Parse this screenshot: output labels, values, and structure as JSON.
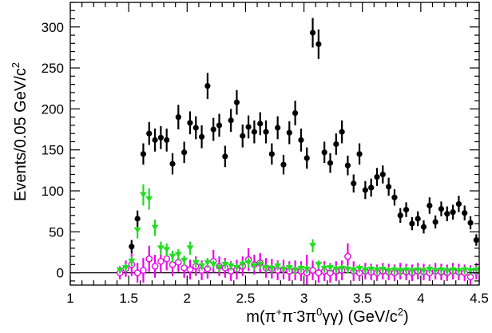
{
  "chart_data": {
    "type": "scatter",
    "title": "",
    "xlabel_parts": {
      "pre": "m(π",
      "sup1": "+",
      "mid1": "π",
      "sup2": "-",
      "mid2": "3π",
      "sup3": "0",
      "mid3": "γγ) (GeV/c",
      "sup4": "2",
      "post": ")"
    },
    "ylabel_parts": {
      "pre": "Events/0.05 GeV/c",
      "sup": "2"
    },
    "xlim": [
      1.0,
      4.5
    ],
    "ylim": [
      -15,
      330
    ],
    "xticks": [
      1,
      1.5,
      2,
      2.5,
      3,
      3.5,
      4,
      4.5
    ],
    "xtick_labels": [
      "1",
      "1.5",
      "2",
      "2.5",
      "3",
      "3.5",
      "4",
      "4.5"
    ],
    "yticks": [
      0,
      50,
      100,
      150,
      200,
      250,
      300
    ],
    "ytick_labels": [
      "0",
      "50",
      "100",
      "150",
      "200",
      "250",
      "300"
    ],
    "grid": false,
    "legend": "none",
    "colors": {
      "data": "#000000",
      "green": "#22dd22",
      "magenta": "#ee00ee"
    },
    "series": [
      {
        "style": "filled-circle",
        "points": [
          [
            1.525,
            32,
            8
          ],
          [
            1.575,
            66,
            10
          ],
          [
            1.625,
            145,
            13
          ],
          [
            1.675,
            170,
            14
          ],
          [
            1.725,
            162,
            14
          ],
          [
            1.775,
            165,
            14
          ],
          [
            1.825,
            162,
            14
          ],
          [
            1.875,
            133,
            13
          ],
          [
            1.925,
            190,
            15
          ],
          [
            1.975,
            147,
            13
          ],
          [
            2.025,
            183,
            14
          ],
          [
            2.075,
            177,
            14
          ],
          [
            2.125,
            166,
            14
          ],
          [
            2.175,
            228,
            16
          ],
          [
            2.225,
            175,
            14
          ],
          [
            2.275,
            180,
            14
          ],
          [
            2.325,
            142,
            13
          ],
          [
            2.375,
            186,
            14
          ],
          [
            2.425,
            208,
            15
          ],
          [
            2.475,
            167,
            14
          ],
          [
            2.525,
            178,
            14
          ],
          [
            2.575,
            172,
            14
          ],
          [
            2.625,
            182,
            14
          ],
          [
            2.675,
            172,
            14
          ],
          [
            2.725,
            145,
            13
          ],
          [
            2.775,
            177,
            14
          ],
          [
            2.825,
            132,
            12
          ],
          [
            2.875,
            171,
            14
          ],
          [
            2.925,
            195,
            15
          ],
          [
            2.975,
            162,
            14
          ],
          [
            3.025,
            140,
            13
          ],
          [
            3.075,
            293,
            18
          ],
          [
            3.125,
            279,
            18
          ],
          [
            3.175,
            147,
            13
          ],
          [
            3.225,
            134,
            12
          ],
          [
            3.275,
            157,
            13
          ],
          [
            3.325,
            172,
            14
          ],
          [
            3.375,
            131,
            12
          ],
          [
            3.425,
            109,
            11
          ],
          [
            3.475,
            145,
            13
          ],
          [
            3.525,
            101,
            11
          ],
          [
            3.575,
            104,
            11
          ],
          [
            3.625,
            117,
            11
          ],
          [
            3.675,
            120,
            11
          ],
          [
            3.725,
            105,
            11
          ],
          [
            3.775,
            92,
            10
          ],
          [
            3.825,
            70,
            9
          ],
          [
            3.875,
            77,
            9
          ],
          [
            3.925,
            60,
            8
          ],
          [
            3.975,
            66,
            9
          ],
          [
            4.025,
            56,
            8
          ],
          [
            4.075,
            82,
            10
          ],
          [
            4.125,
            62,
            8
          ],
          [
            4.175,
            78,
            9
          ],
          [
            4.225,
            72,
            9
          ],
          [
            4.275,
            74,
            9
          ],
          [
            4.325,
            84,
            10
          ],
          [
            4.375,
            73,
            9
          ],
          [
            4.425,
            61,
            8
          ],
          [
            4.475,
            40,
            7
          ]
        ]
      },
      {
        "style": "green-triangle",
        "points": [
          [
            1.425,
            3,
            4
          ],
          [
            1.475,
            6,
            5
          ],
          [
            1.525,
            14,
            6
          ],
          [
            1.575,
            52,
            10
          ],
          [
            1.625,
            95,
            13
          ],
          [
            1.675,
            90,
            13
          ],
          [
            1.725,
            55,
            10
          ],
          [
            1.775,
            30,
            8
          ],
          [
            1.825,
            28,
            8
          ],
          [
            1.875,
            20,
            7
          ],
          [
            1.925,
            22,
            7
          ],
          [
            1.975,
            15,
            6
          ],
          [
            2.025,
            30,
            8
          ],
          [
            2.075,
            12,
            6
          ],
          [
            2.125,
            8,
            5
          ],
          [
            2.175,
            12,
            6
          ],
          [
            2.225,
            10,
            5
          ],
          [
            2.275,
            6,
            5
          ],
          [
            2.325,
            10,
            5
          ],
          [
            2.375,
            8,
            5
          ],
          [
            2.425,
            6,
            5
          ],
          [
            2.475,
            10,
            5
          ],
          [
            2.525,
            12,
            6
          ],
          [
            2.575,
            8,
            5
          ],
          [
            2.625,
            10,
            5
          ],
          [
            2.675,
            6,
            5
          ],
          [
            2.725,
            5,
            5
          ],
          [
            2.775,
            8,
            5
          ],
          [
            2.825,
            4,
            5
          ],
          [
            2.875,
            6,
            5
          ],
          [
            2.925,
            3,
            5
          ],
          [
            2.975,
            5,
            5
          ],
          [
            3.025,
            4,
            5
          ],
          [
            3.075,
            33,
            8
          ],
          [
            3.125,
            10,
            5
          ],
          [
            3.175,
            5,
            5
          ],
          [
            3.225,
            6,
            5
          ],
          [
            3.275,
            4,
            5
          ],
          [
            3.325,
            5,
            5
          ],
          [
            3.375,
            4,
            5
          ],
          [
            3.425,
            3,
            5
          ],
          [
            3.475,
            5,
            5
          ],
          [
            3.525,
            3,
            5
          ],
          [
            3.575,
            4,
            5
          ],
          [
            3.625,
            3,
            5
          ],
          [
            3.675,
            4,
            5
          ],
          [
            3.725,
            2,
            5
          ],
          [
            3.775,
            3,
            5
          ],
          [
            3.825,
            2,
            5
          ],
          [
            3.875,
            3,
            5
          ],
          [
            3.925,
            2,
            5
          ],
          [
            3.975,
            3,
            5
          ],
          [
            4.025,
            2,
            5
          ],
          [
            4.075,
            4,
            5
          ],
          [
            4.125,
            2,
            5
          ],
          [
            4.175,
            3,
            5
          ],
          [
            4.225,
            2,
            5
          ],
          [
            4.275,
            3,
            5
          ],
          [
            4.325,
            2,
            5
          ],
          [
            4.375,
            3,
            5
          ],
          [
            4.425,
            2,
            5
          ],
          [
            4.475,
            3,
            5
          ]
        ]
      },
      {
        "style": "magenta-open-circle",
        "points": [
          [
            1.425,
            0,
            8
          ],
          [
            1.475,
            5,
            10
          ],
          [
            1.525,
            10,
            14
          ],
          [
            1.575,
            0,
            12
          ],
          [
            1.625,
            3,
            15
          ],
          [
            1.675,
            17,
            16
          ],
          [
            1.725,
            8,
            14
          ],
          [
            1.775,
            14,
            14
          ],
          [
            1.825,
            17,
            14
          ],
          [
            1.875,
            10,
            14
          ],
          [
            1.925,
            13,
            12
          ],
          [
            1.975,
            6,
            12
          ],
          [
            2.025,
            4,
            12
          ],
          [
            2.075,
            8,
            12
          ],
          [
            2.125,
            3,
            12
          ],
          [
            2.175,
            5,
            12
          ],
          [
            2.225,
            14,
            14
          ],
          [
            2.275,
            8,
            12
          ],
          [
            2.325,
            6,
            12
          ],
          [
            2.375,
            2,
            12
          ],
          [
            2.425,
            4,
            12
          ],
          [
            2.475,
            8,
            12
          ],
          [
            2.525,
            16,
            14
          ],
          [
            2.575,
            10,
            12
          ],
          [
            2.625,
            12,
            12
          ],
          [
            2.675,
            6,
            12
          ],
          [
            2.725,
            5,
            12
          ],
          [
            2.775,
            3,
            12
          ],
          [
            2.825,
            4,
            12
          ],
          [
            2.875,
            2,
            12
          ],
          [
            2.925,
            3,
            12
          ],
          [
            2.975,
            2,
            12
          ],
          [
            3.025,
            0,
            22
          ],
          [
            3.075,
            3,
            12
          ],
          [
            3.125,
            0,
            12
          ],
          [
            3.175,
            2,
            12
          ],
          [
            3.225,
            0,
            12
          ],
          [
            3.275,
            2,
            12
          ],
          [
            3.325,
            3,
            12
          ],
          [
            3.375,
            20,
            16
          ],
          [
            3.425,
            2,
            12
          ],
          [
            3.475,
            0,
            10
          ],
          [
            3.525,
            2,
            10
          ],
          [
            3.575,
            1,
            10
          ],
          [
            3.625,
            0,
            10
          ],
          [
            3.675,
            2,
            10
          ],
          [
            3.725,
            1,
            10
          ],
          [
            3.775,
            0,
            10
          ],
          [
            3.825,
            2,
            10
          ],
          [
            3.875,
            1,
            10
          ],
          [
            3.925,
            0,
            10
          ],
          [
            3.975,
            2,
            10
          ],
          [
            4.025,
            1,
            10
          ],
          [
            4.075,
            0,
            10
          ],
          [
            4.125,
            2,
            10
          ],
          [
            4.175,
            1,
            10
          ],
          [
            4.225,
            0,
            10
          ],
          [
            4.275,
            2,
            10
          ],
          [
            4.325,
            1,
            10
          ],
          [
            4.375,
            0,
            10
          ],
          [
            4.425,
            -5,
            14
          ],
          [
            4.475,
            2,
            10
          ]
        ]
      }
    ]
  }
}
